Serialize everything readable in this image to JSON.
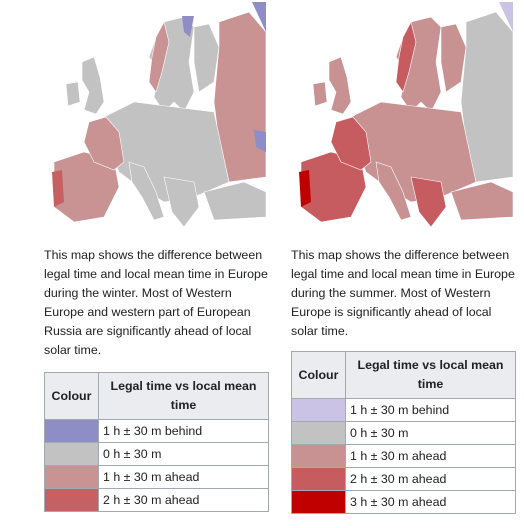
{
  "winter": {
    "caption": "This map shows the difference between legal time and local mean time in Europe during the winter. Most of Western Europe and western part of European Russia are significantly ahead of local solar time.",
    "legend": {
      "header_colour": "Colour",
      "header_desc": "Legal time vs local mean time",
      "rows": [
        {
          "color": "#8e8dc6",
          "label": "1 h ± 30 m behind"
        },
        {
          "color": "#c2c2c2",
          "label": "0 h ± 30 m"
        },
        {
          "color": "#c99394",
          "label": "1 h ± 30 m ahead"
        },
        {
          "color": "#c66063",
          "label": "2 h ± 30 m ahead"
        }
      ]
    }
  },
  "summer": {
    "caption": "This map shows the difference between legal time and local mean time in Europe during the summer. Most of Western Europe is significantly ahead of local solar time.",
    "legend": {
      "header_colour": "Colour",
      "header_desc": "Legal time vs local mean time",
      "rows": [
        {
          "color": "#cbc3e5",
          "label": "1 h ± 30 m behind"
        },
        {
          "color": "#c2c2c2",
          "label": "0 h ± 30 m"
        },
        {
          "color": "#c89192",
          "label": "1 h ± 30 m ahead"
        },
        {
          "color": "#c65c60",
          "label": "2 h ± 30 m ahead"
        },
        {
          "color": "#c00000",
          "label": "3 h ± 30 m ahead"
        }
      ]
    }
  },
  "map_colors": {
    "land_neutral": "#c2c2c2",
    "behind": "#8e8dc6",
    "ahead_1": "#c99394",
    "ahead_2": "#c66063",
    "ahead_3": "#c00000",
    "border": "#ffffff"
  }
}
